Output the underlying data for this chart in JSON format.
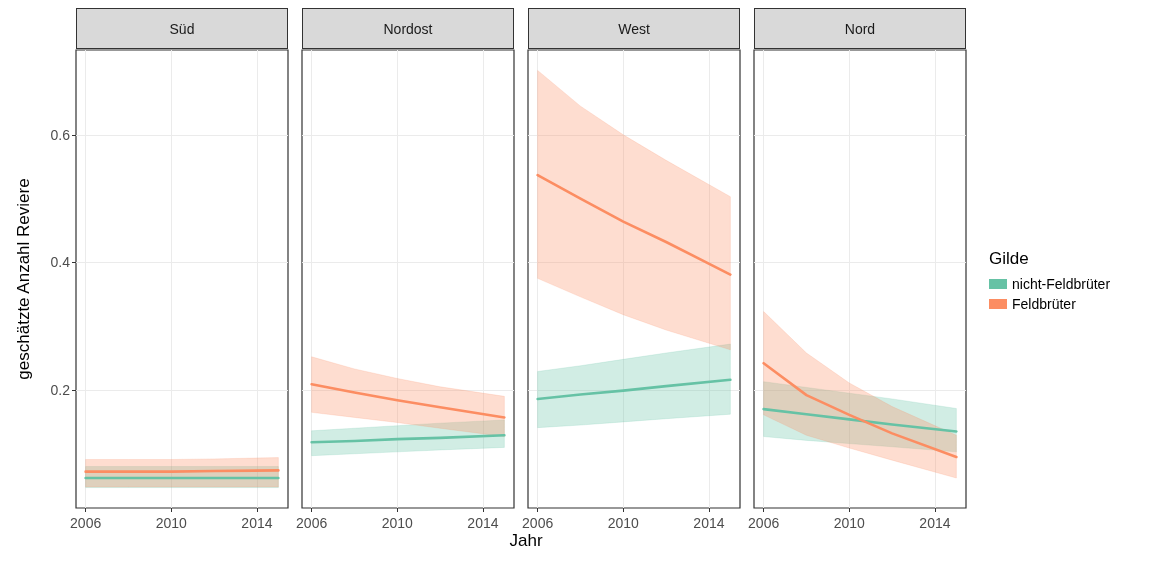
{
  "chart_data": [
    {
      "type": "line",
      "title": "Süd",
      "ylabel": "geschätzte Anzahl Reviere",
      "x": [
        2006,
        2008,
        2010,
        2012,
        2015
      ],
      "series": [
        {
          "color": "#66c2a5",
          "values": [
            0.062,
            0.062,
            0.062,
            0.062,
            0.062
          ],
          "lower": [
            0.047,
            0.047,
            0.047,
            0.047,
            0.047
          ],
          "upper": [
            0.08,
            0.08,
            0.08,
            0.08,
            0.08
          ]
        },
        {
          "color": "#fc8d62",
          "values": [
            0.072,
            0.072,
            0.072,
            0.073,
            0.074
          ],
          "lower": [
            0.048,
            0.048,
            0.048,
            0.048,
            0.048
          ],
          "upper": [
            0.091,
            0.091,
            0.091,
            0.092,
            0.094
          ]
        }
      ],
      "xlim": [
        2005.55,
        2015.45
      ],
      "xticks": [
        2006,
        2010,
        2014
      ],
      "ylim": [
        0.015,
        0.733
      ],
      "yticks": [
        0.2,
        0.4,
        0.6
      ],
      "grid": true
    },
    {
      "type": "line",
      "title": "Nordost",
      "xlabel": "Jahr",
      "x": [
        2006,
        2008,
        2010,
        2012,
        2015
      ],
      "series": [
        {
          "color": "#66c2a5",
          "values": [
            0.118,
            0.12,
            0.123,
            0.125,
            0.129
          ],
          "lower": [
            0.097,
            0.1,
            0.103,
            0.106,
            0.11
          ],
          "upper": [
            0.136,
            0.14,
            0.144,
            0.148,
            0.153
          ]
        },
        {
          "color": "#fc8d62",
          "values": [
            0.209,
            0.196,
            0.184,
            0.173,
            0.157
          ],
          "lower": [
            0.165,
            0.157,
            0.149,
            0.14,
            0.127
          ],
          "upper": [
            0.252,
            0.233,
            0.218,
            0.205,
            0.19
          ]
        }
      ],
      "xlim": [
        2005.55,
        2015.45
      ],
      "xticks": [
        2006,
        2010,
        2014
      ],
      "ylim": [
        0.015,
        0.733
      ],
      "yticks": [
        0.2,
        0.4,
        0.6
      ],
      "grid": true,
      "tick_labels": "x"
    },
    {
      "type": "line",
      "title": "West",
      "x": [
        2006,
        2008,
        2010,
        2012,
        2015
      ],
      "series": [
        {
          "color": "#66c2a5",
          "values": [
            0.186,
            0.193,
            0.199,
            0.206,
            0.216
          ],
          "lower": [
            0.141,
            0.145,
            0.15,
            0.155,
            0.162
          ],
          "upper": [
            0.229,
            0.238,
            0.248,
            0.258,
            0.272
          ]
        },
        {
          "color": "#fc8d62",
          "values": [
            0.537,
            0.5,
            0.464,
            0.432,
            0.381
          ],
          "lower": [
            0.375,
            0.346,
            0.318,
            0.294,
            0.263
          ],
          "upper": [
            0.701,
            0.645,
            0.6,
            0.56,
            0.503
          ]
        }
      ],
      "xlim": [
        2005.55,
        2015.45
      ],
      "xticks": [
        2006,
        2010,
        2014
      ],
      "ylim": [
        0.015,
        0.733
      ],
      "yticks": [
        0.2,
        0.4,
        0.6
      ],
      "grid": true,
      "tick_labels": "x"
    },
    {
      "type": "line",
      "title": "Nord",
      "legend_title": "Gilde",
      "legend": "right",
      "x": [
        2006,
        2008,
        2010,
        2012,
        2015
      ],
      "series": [
        {
          "name": "nicht-Feldbrüter",
          "color": "#66c2a5",
          "values": [
            0.17,
            0.162,
            0.154,
            0.146,
            0.135
          ],
          "lower": [
            0.127,
            0.121,
            0.116,
            0.111,
            0.103
          ],
          "upper": [
            0.213,
            0.204,
            0.195,
            0.186,
            0.171
          ]
        },
        {
          "name": "Feldbrüter",
          "color": "#fc8d62",
          "values": [
            0.242,
            0.192,
            0.161,
            0.132,
            0.095
          ],
          "lower": [
            0.161,
            0.129,
            0.109,
            0.09,
            0.062
          ],
          "upper": [
            0.323,
            0.258,
            0.211,
            0.174,
            0.129
          ]
        }
      ],
      "xlim": [
        2005.55,
        2015.45
      ],
      "xticks": [
        2006,
        2010,
        2014
      ],
      "ylim": [
        0.015,
        0.733
      ],
      "yticks": [
        0.2,
        0.4,
        0.6
      ],
      "grid": true,
      "tick_labels": "x"
    }
  ]
}
